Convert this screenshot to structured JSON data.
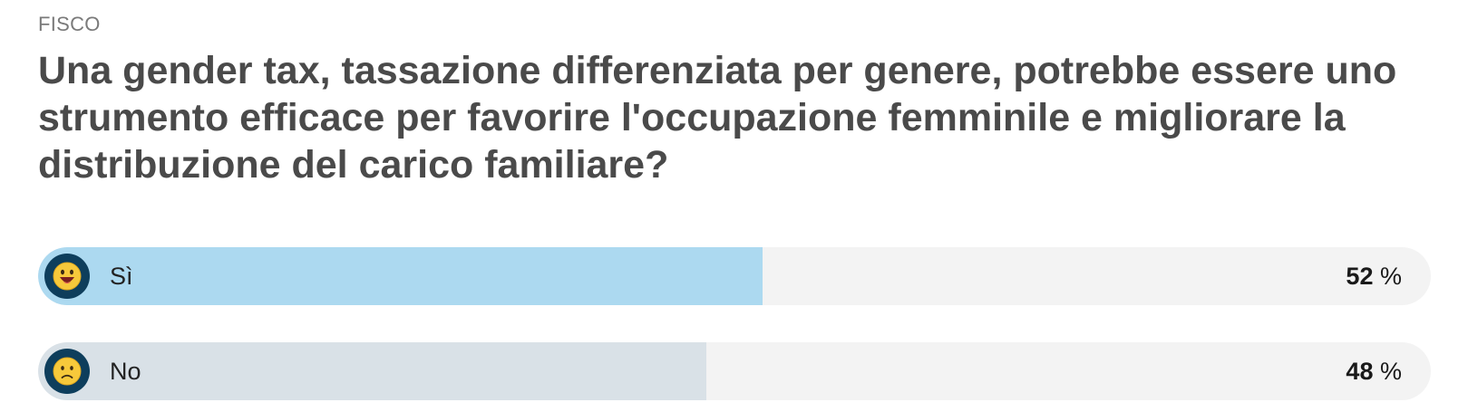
{
  "category": "FISCO",
  "question": "Una gender tax, tassazione differenziata per genere, potrebbe essere uno strumento efficace per favorire l'occupazione femminile e migliorare la distribuzione del carico familiare?",
  "options": [
    {
      "label": "Sì",
      "percent": 52,
      "percent_suffix": "%",
      "icon": "happy-face-icon",
      "fill_color": "#acd9f0"
    },
    {
      "label": "No",
      "percent": 48,
      "percent_suffix": "%",
      "icon": "sad-face-icon",
      "fill_color": "#d9e1e7"
    }
  ],
  "colors": {
    "track": "#f3f3f3",
    "emoji_circle": "#0e3e5c",
    "emoji_face": "#f7c93b"
  }
}
